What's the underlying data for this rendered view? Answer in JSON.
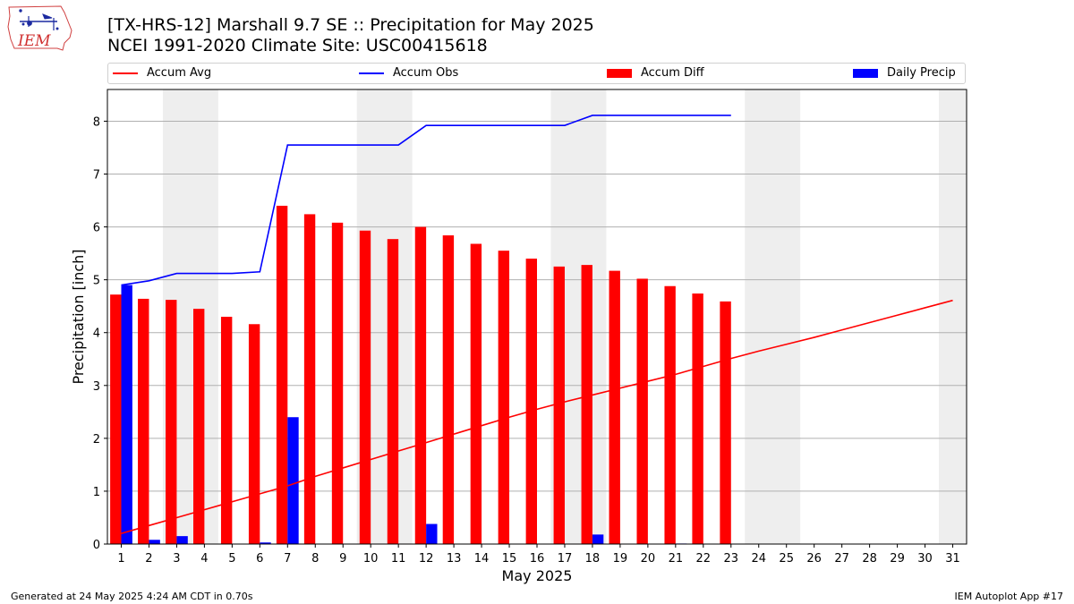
{
  "header": {
    "title_line1": "[TX-HRS-12] Marshall 9.7 SE :: Precipitation for May 2025",
    "title_line2": "NCEI 1991-2020 Climate Site: USC00415618",
    "logo_text": "IEM"
  },
  "footer": {
    "generated": "Generated at 24 May 2025 4:24 AM CDT in 0.70s",
    "app": "IEM Autoplot App #17"
  },
  "colors": {
    "avg": "#ff0000",
    "obs": "#0000ff",
    "diff": "#ff0000",
    "daily": "#0000ff",
    "weekend_band": "#eeeeee",
    "grid": "#b0b0b0"
  },
  "chart_data": {
    "type": "bar",
    "title": "[TX-HRS-12] Marshall 9.7 SE :: Precipitation for May 2025",
    "xlabel": "May 2025",
    "ylabel": "Precipitation [inch]",
    "xlim": [
      0.5,
      31.5
    ],
    "ylim": [
      0,
      8.6
    ],
    "yticks": [
      0,
      1,
      2,
      3,
      4,
      5,
      6,
      7,
      8
    ],
    "categories": [
      1,
      2,
      3,
      4,
      5,
      6,
      7,
      8,
      9,
      10,
      11,
      12,
      13,
      14,
      15,
      16,
      17,
      18,
      19,
      20,
      21,
      22,
      23,
      24,
      25,
      26,
      27,
      28,
      29,
      30,
      31
    ],
    "grid": "horizontal",
    "legend_placement": "top",
    "weekend_bands": [
      [
        3,
        4
      ],
      [
        10,
        11
      ],
      [
        17,
        18
      ],
      [
        24,
        25
      ],
      [
        31,
        31
      ]
    ],
    "series": [
      {
        "name": "Accum Avg",
        "kind": "line",
        "x": [
          1,
          2,
          3,
          4,
          5,
          6,
          7,
          8,
          9,
          10,
          11,
          12,
          13,
          14,
          15,
          16,
          17,
          18,
          19,
          20,
          21,
          22,
          23,
          24,
          25,
          26,
          27,
          28,
          29,
          30,
          31
        ],
        "values": [
          0.2,
          0.35,
          0.5,
          0.65,
          0.8,
          0.95,
          1.1,
          1.28,
          1.44,
          1.6,
          1.76,
          1.92,
          2.08,
          2.24,
          2.4,
          2.55,
          2.69,
          2.82,
          2.95,
          3.08,
          3.21,
          3.36,
          3.51,
          3.65,
          3.78,
          3.91,
          4.05,
          4.19,
          4.33,
          4.47,
          4.61
        ]
      },
      {
        "name": "Accum Obs",
        "kind": "line",
        "x": [
          1,
          2,
          3,
          4,
          5,
          6,
          7,
          8,
          9,
          10,
          11,
          12,
          13,
          14,
          15,
          16,
          17,
          18,
          19,
          20,
          21,
          22,
          23
        ],
        "values": [
          4.9,
          4.98,
          5.12,
          5.12,
          5.12,
          5.15,
          7.55,
          7.55,
          7.55,
          7.55,
          7.55,
          7.92,
          7.92,
          7.92,
          7.92,
          7.92,
          7.92,
          8.11,
          8.11,
          8.11,
          8.11,
          8.11,
          8.11
        ]
      },
      {
        "name": "Accum Diff",
        "kind": "bar",
        "x": [
          1,
          2,
          3,
          4,
          5,
          6,
          7,
          8,
          9,
          10,
          11,
          12,
          13,
          14,
          15,
          16,
          17,
          18,
          19,
          20,
          21,
          22,
          23
        ],
        "values": [
          4.72,
          4.64,
          4.62,
          4.45,
          4.3,
          4.16,
          6.4,
          6.24,
          6.08,
          5.93,
          5.77,
          6.0,
          5.84,
          5.68,
          5.55,
          5.4,
          5.25,
          5.28,
          5.17,
          5.02,
          4.88,
          4.74,
          4.59
        ]
      },
      {
        "name": "Daily Precip",
        "kind": "bar",
        "x": [
          1,
          2,
          3,
          4,
          5,
          6,
          7,
          8,
          9,
          10,
          11,
          12,
          13,
          14,
          15,
          16,
          17,
          18,
          19,
          20,
          21,
          22,
          23
        ],
        "values": [
          4.9,
          0.08,
          0.15,
          0,
          0,
          0.03,
          2.4,
          0,
          0,
          0,
          0,
          0.38,
          0,
          0,
          0,
          0,
          0,
          0.18,
          0,
          0,
          0.01,
          0,
          0
        ]
      }
    ]
  }
}
